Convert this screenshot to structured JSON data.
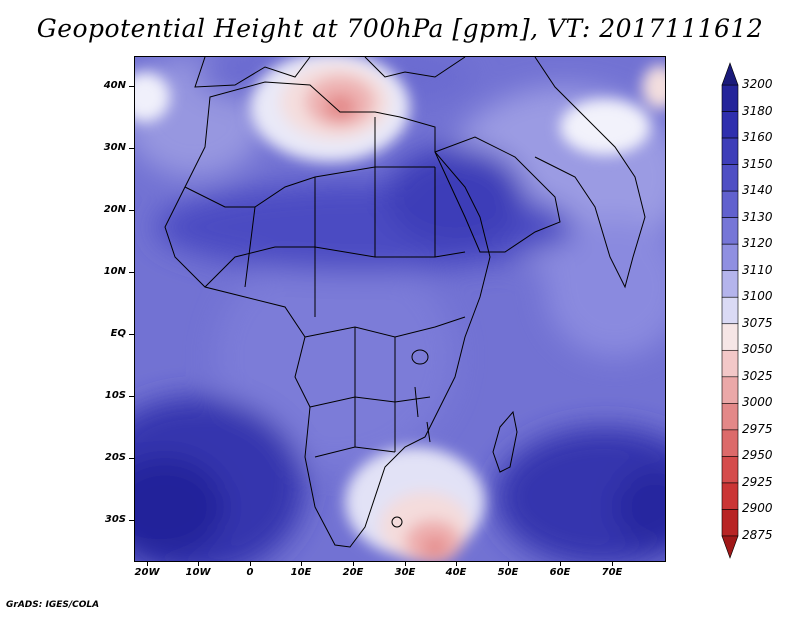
{
  "title": "Geopotential Height at 700hPa [gpm], VT: 2017111612",
  "credit": "GrADS: IGES/COLA",
  "map": {
    "lat_labels": [
      "40N",
      "30N",
      "20N",
      "10N",
      "EQ",
      "10S",
      "20S",
      "30S"
    ],
    "lon_labels": [
      "20W",
      "10W",
      "0",
      "10E",
      "20E",
      "30E",
      "40E",
      "50E",
      "60E",
      "70E"
    ]
  },
  "colorbar": {
    "levels": [
      "3200",
      "3180",
      "3160",
      "3150",
      "3140",
      "3130",
      "3120",
      "3110",
      "3100",
      "3075",
      "3050",
      "3025",
      "3000",
      "2975",
      "2950",
      "2925",
      "2900",
      "2875"
    ],
    "colors": [
      "#1a1a7a",
      "#24249a",
      "#2f2fae",
      "#3e3eb9",
      "#4f4fc4",
      "#6161ce",
      "#7676d7",
      "#9090e1",
      "#b4b4ec",
      "#dadaf5",
      "#f6e6e6",
      "#f3c8c8",
      "#eba8a8",
      "#e38888",
      "#dc6a6a",
      "#d54c4c",
      "#cb3535",
      "#b82424",
      "#a01818"
    ]
  }
}
